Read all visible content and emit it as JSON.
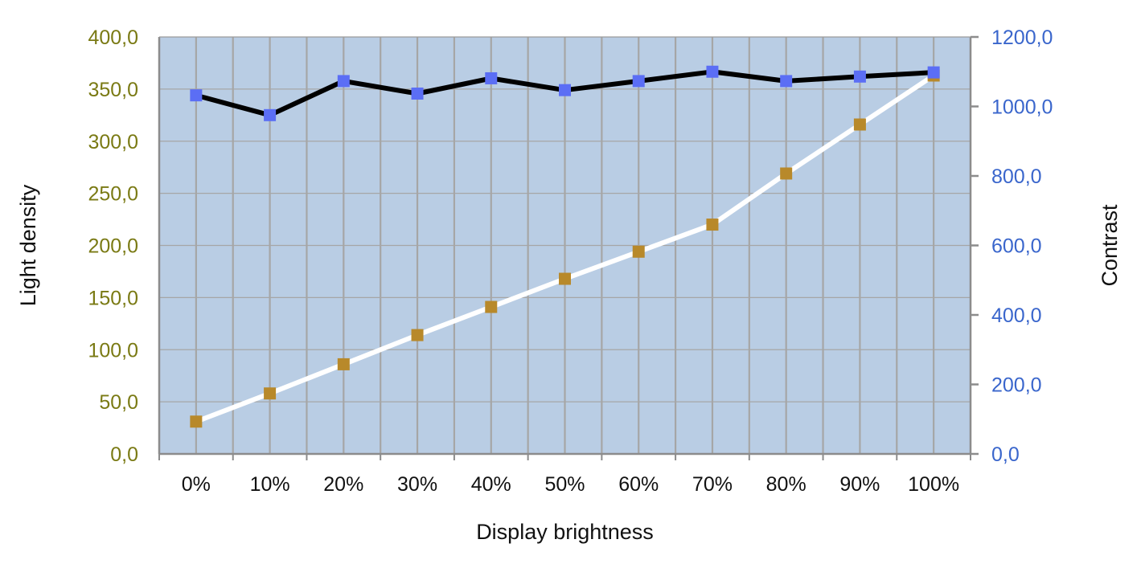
{
  "chart_data": {
    "type": "line",
    "x": [
      "0%",
      "10%",
      "20%",
      "30%",
      "40%",
      "50%",
      "60%",
      "70%",
      "80%",
      "90%",
      "100%"
    ],
    "xlabel": "Display brightness",
    "ylabel_left": "Light density",
    "ylabel_right": "Contrast",
    "ylim_left": [
      0,
      400
    ],
    "ylim_right": [
      0,
      1200
    ],
    "yticks_left": [
      "0,0",
      "50,0",
      "100,0",
      "150,0",
      "200,0",
      "250,0",
      "300,0",
      "350,0",
      "400,0"
    ],
    "yticks_right": [
      "0,0",
      "200,0",
      "400,0",
      "600,0",
      "800,0",
      "1000,0",
      "1200,0"
    ],
    "grid": true,
    "series": [
      {
        "axis": "left",
        "line_color": "#ffffff",
        "marker_color": "#b8892a",
        "values": [
          31,
          58,
          86,
          114,
          141,
          168,
          194,
          220,
          269,
          316,
          363
        ]
      },
      {
        "axis": "right",
        "line_color": "#000000",
        "marker_color": "#5b6ef5",
        "values": [
          1032,
          975,
          1073,
          1037,
          1081,
          1047,
          1073,
          1100,
          1073,
          1086,
          1098
        ]
      }
    ],
    "colors": {
      "plot_background": "#b9cde4",
      "grid": "#a6a6a6",
      "left_tick_color": "#7a7a14",
      "right_tick_color": "#3a66cc"
    }
  }
}
